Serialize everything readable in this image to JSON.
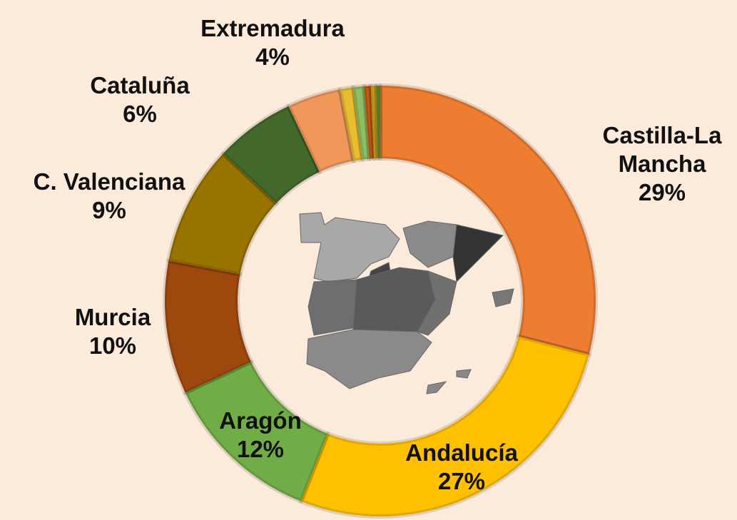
{
  "chart_data": {
    "type": "donut",
    "categories": [
      "Castilla-La Mancha",
      "Andalucía",
      "Aragón",
      "Murcia",
      "C. Valenciana",
      "Cataluña",
      "Extremadura",
      null,
      null,
      null,
      null,
      null
    ],
    "values": [
      29,
      27,
      12,
      10,
      9,
      6,
      4,
      1,
      0.8,
      0.5,
      0.4,
      0.3
    ],
    "value_labels": [
      "29%",
      "27%",
      "12%",
      "10%",
      "9%",
      "6%",
      "4%",
      null,
      null,
      null,
      null,
      null
    ],
    "colors": [
      "#ED7D31",
      "#FFC000",
      "#70AD47",
      "#9E480E",
      "#997300",
      "#43682B",
      "#F1975A",
      "#E8BE30",
      "#8CBF64",
      "#C55A11",
      "#D4A017",
      "#5B8C32"
    ]
  }
}
